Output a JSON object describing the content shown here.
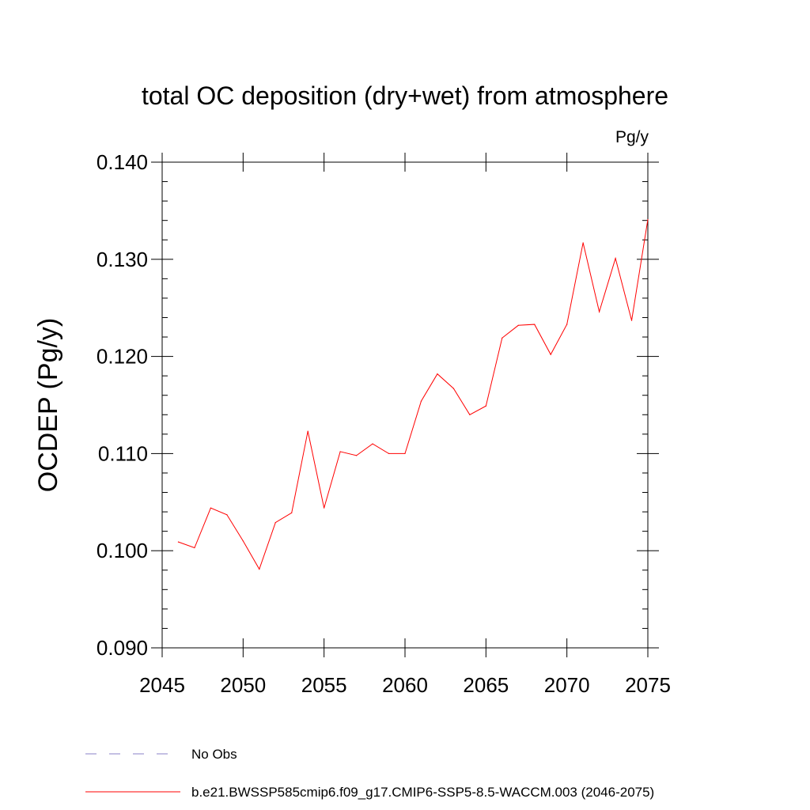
{
  "chart_data": {
    "type": "line",
    "title": "total OC deposition (dry+wet) from atmosphere",
    "units_label": "Pg/y",
    "ylabel": "OCDEP  (Pg/y)",
    "xlabel": "",
    "xlim": [
      2045,
      2075
    ],
    "ylim": [
      0.09,
      0.14
    ],
    "x_ticks": [
      2045,
      2050,
      2055,
      2060,
      2065,
      2070,
      2075
    ],
    "x_tick_labels": [
      "2045",
      "2050",
      "2055",
      "2060",
      "2065",
      "2070",
      "2075"
    ],
    "y_ticks": [
      0.09,
      0.1,
      0.11,
      0.12,
      0.13,
      0.14
    ],
    "y_tick_labels": [
      "0.090",
      "0.100",
      "0.110",
      "0.120",
      "0.130",
      "0.140"
    ],
    "grid": false,
    "series": [
      {
        "name": "b.e21.BWSSP585cmip6.f09_g17.CMIP6-SSP5-8.5-WACCM.003 (2046-2075)",
        "color": "#ff0000",
        "x": [
          2046,
          2047,
          2048,
          2049,
          2050,
          2051,
          2052,
          2053,
          2054,
          2055,
          2056,
          2057,
          2058,
          2059,
          2060,
          2061,
          2062,
          2063,
          2064,
          2065,
          2066,
          2067,
          2068,
          2069,
          2070,
          2071,
          2072,
          2073,
          2074,
          2075
        ],
        "values": [
          0.1009,
          0.1003,
          0.1044,
          0.1037,
          0.101,
          0.0981,
          0.1029,
          0.1039,
          0.1123,
          0.1044,
          0.1102,
          0.1098,
          0.111,
          0.11,
          0.11,
          0.1154,
          0.1182,
          0.1167,
          0.114,
          0.1149,
          0.1219,
          0.1232,
          0.1233,
          0.1202,
          0.1233,
          0.1317,
          0.1246,
          0.1301,
          0.1237,
          0.1341
        ]
      }
    ],
    "legend": [
      {
        "label": "No Obs",
        "style": "dashed",
        "color": "#8a80c8"
      },
      {
        "label": "b.e21.BWSSP585cmip6.f09_g17.CMIP6-SSP5-8.5-WACCM.003 (2046-2075)",
        "style": "solid",
        "color": "#ff0000"
      }
    ]
  }
}
